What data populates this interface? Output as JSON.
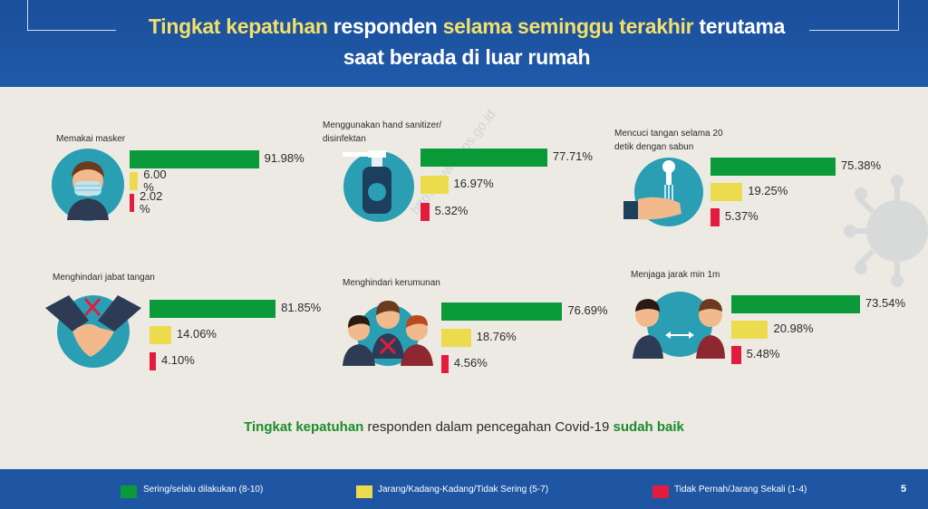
{
  "title": {
    "line1_hl1": "Tingkat kepatuhan",
    "line1_mid": "responden",
    "line1_hl2": "selama seminggu terakhir",
    "line1_end": "terutama",
    "line2": "saat berada di  luar rumah"
  },
  "watermark": "https://www.bps.go.id",
  "chart_data": {
    "type": "bar",
    "orientation": "horizontal",
    "series": [
      {
        "name": "Sering/selalu dilakukan (8-10)",
        "color": "#0b9a3a"
      },
      {
        "name": "Jarang/Kadang-Kadang/Tidak Sering (5-7)",
        "color": "#ecdc4d"
      },
      {
        "name": "Tidak Pernah/Jarang Sekali (1-4)",
        "color": "#e31c3d"
      }
    ],
    "panels": [
      {
        "label": "Memakai masker",
        "icon": "face-mask-icon",
        "values": [
          91.98,
          6.0,
          2.02
        ],
        "value_labels": [
          "91.98%",
          "6.00\n%",
          "2.02\n%"
        ]
      },
      {
        "label": "Menggunakan hand sanitizer/\ndisinfektan",
        "icon": "hand-sanitizer-icon",
        "values": [
          77.71,
          16.97,
          5.32
        ],
        "value_labels": [
          "77.71%",
          "16.97%",
          "5.32%"
        ]
      },
      {
        "label": "Mencuci tangan selama 20\ndetik dengan sabun",
        "icon": "hand-washing-icon",
        "values": [
          75.38,
          19.25,
          5.37
        ],
        "value_labels": [
          "75.38%",
          "19.25%",
          "5.37%"
        ]
      },
      {
        "label": "Menghindari jabat tangan",
        "icon": "no-handshake-icon",
        "values": [
          81.85,
          14.06,
          4.1
        ],
        "value_labels": [
          "81.85%",
          "14.06%",
          "4.10%"
        ]
      },
      {
        "label": "Menghindari kerumunan",
        "icon": "avoid-crowd-icon",
        "values": [
          76.69,
          18.76,
          4.56
        ],
        "value_labels": [
          "76.69%",
          "18.76%",
          "4.56%"
        ]
      },
      {
        "label": "Menjaga jarak min 1m",
        "icon": "social-distance-icon",
        "values": [
          73.54,
          20.98,
          5.48
        ],
        "value_labels": [
          "73.54%",
          "20.98%",
          "5.48%"
        ]
      }
    ]
  },
  "summary": {
    "hl1": "Tingkat kepatuhan",
    "mid": " responden dalam pencegahan Covid-19 ",
    "hl2": "sudah baik"
  },
  "page_number": "5"
}
